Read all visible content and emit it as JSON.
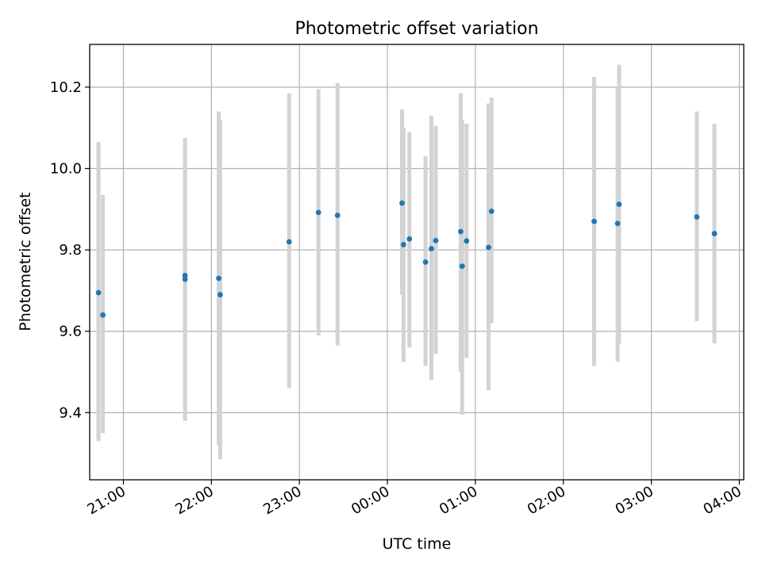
{
  "chart_data": {
    "type": "scatter",
    "title": "Photometric offset variation",
    "xlabel": "UTC time",
    "ylabel": "Photometric offset",
    "x_unit": "UTC time (hours; values after midnight continue past 24:00)",
    "xlim": [
      "20:37",
      "04:03"
    ],
    "ylim": [
      9.235,
      10.305
    ],
    "grid": true,
    "x_ticks": [
      "21:00",
      "22:00",
      "23:00",
      "00:00",
      "01:00",
      "02:00",
      "03:00",
      "04:00"
    ],
    "y_ticks": [
      "9.4",
      "9.6",
      "9.8",
      "10.0",
      "10.2"
    ],
    "colors": {
      "points": "#1f77b4",
      "errorbars": "#d3d3d3",
      "grid": "#b0b0b0"
    },
    "points": [
      {
        "t": "20:43",
        "y": 9.695,
        "ylow": 9.33,
        "yhigh": 10.065
      },
      {
        "t": "20:46",
        "y": 9.64,
        "ylow": 9.35,
        "yhigh": 9.935
      },
      {
        "t": "21:42",
        "y": 9.737,
        "ylow": 9.41,
        "yhigh": 10.075
      },
      {
        "t": "21:42",
        "y": 9.728,
        "ylow": 9.38,
        "yhigh": 10.055
      },
      {
        "t": "22:05",
        "y": 9.73,
        "ylow": 9.32,
        "yhigh": 10.14
      },
      {
        "t": "22:06",
        "y": 9.69,
        "ylow": 9.285,
        "yhigh": 10.12
      },
      {
        "t": "22:53",
        "y": 9.82,
        "ylow": 9.46,
        "yhigh": 10.185
      },
      {
        "t": "23:13",
        "y": 9.892,
        "ylow": 9.59,
        "yhigh": 10.195
      },
      {
        "t": "23:26",
        "y": 9.885,
        "ylow": 9.565,
        "yhigh": 10.21
      },
      {
        "t": "00:10",
        "y": 9.915,
        "ylow": 9.69,
        "yhigh": 10.145
      },
      {
        "t": "00:11",
        "y": 9.813,
        "ylow": 9.525,
        "yhigh": 10.1
      },
      {
        "t": "00:15",
        "y": 9.827,
        "ylow": 9.56,
        "yhigh": 10.09
      },
      {
        "t": "00:26",
        "y": 9.77,
        "ylow": 9.515,
        "yhigh": 10.03
      },
      {
        "t": "00:30",
        "y": 9.803,
        "ylow": 9.48,
        "yhigh": 10.13
      },
      {
        "t": "00:33",
        "y": 9.823,
        "ylow": 9.545,
        "yhigh": 10.105
      },
      {
        "t": "00:50",
        "y": 9.845,
        "ylow": 9.5,
        "yhigh": 10.185
      },
      {
        "t": "00:51",
        "y": 9.76,
        "ylow": 9.395,
        "yhigh": 10.12
      },
      {
        "t": "00:54",
        "y": 9.822,
        "ylow": 9.535,
        "yhigh": 10.11
      },
      {
        "t": "01:09",
        "y": 9.806,
        "ylow": 9.455,
        "yhigh": 10.16
      },
      {
        "t": "01:11",
        "y": 9.895,
        "ylow": 9.62,
        "yhigh": 10.175
      },
      {
        "t": "02:21",
        "y": 9.87,
        "ylow": 9.515,
        "yhigh": 10.225
      },
      {
        "t": "02:37",
        "y": 9.865,
        "ylow": 9.525,
        "yhigh": 10.2
      },
      {
        "t": "02:38",
        "y": 9.912,
        "ylow": 9.57,
        "yhigh": 10.255
      },
      {
        "t": "03:31",
        "y": 9.881,
        "ylow": 9.625,
        "yhigh": 10.14
      },
      {
        "t": "03:43",
        "y": 9.84,
        "ylow": 9.57,
        "yhigh": 10.11
      }
    ]
  }
}
